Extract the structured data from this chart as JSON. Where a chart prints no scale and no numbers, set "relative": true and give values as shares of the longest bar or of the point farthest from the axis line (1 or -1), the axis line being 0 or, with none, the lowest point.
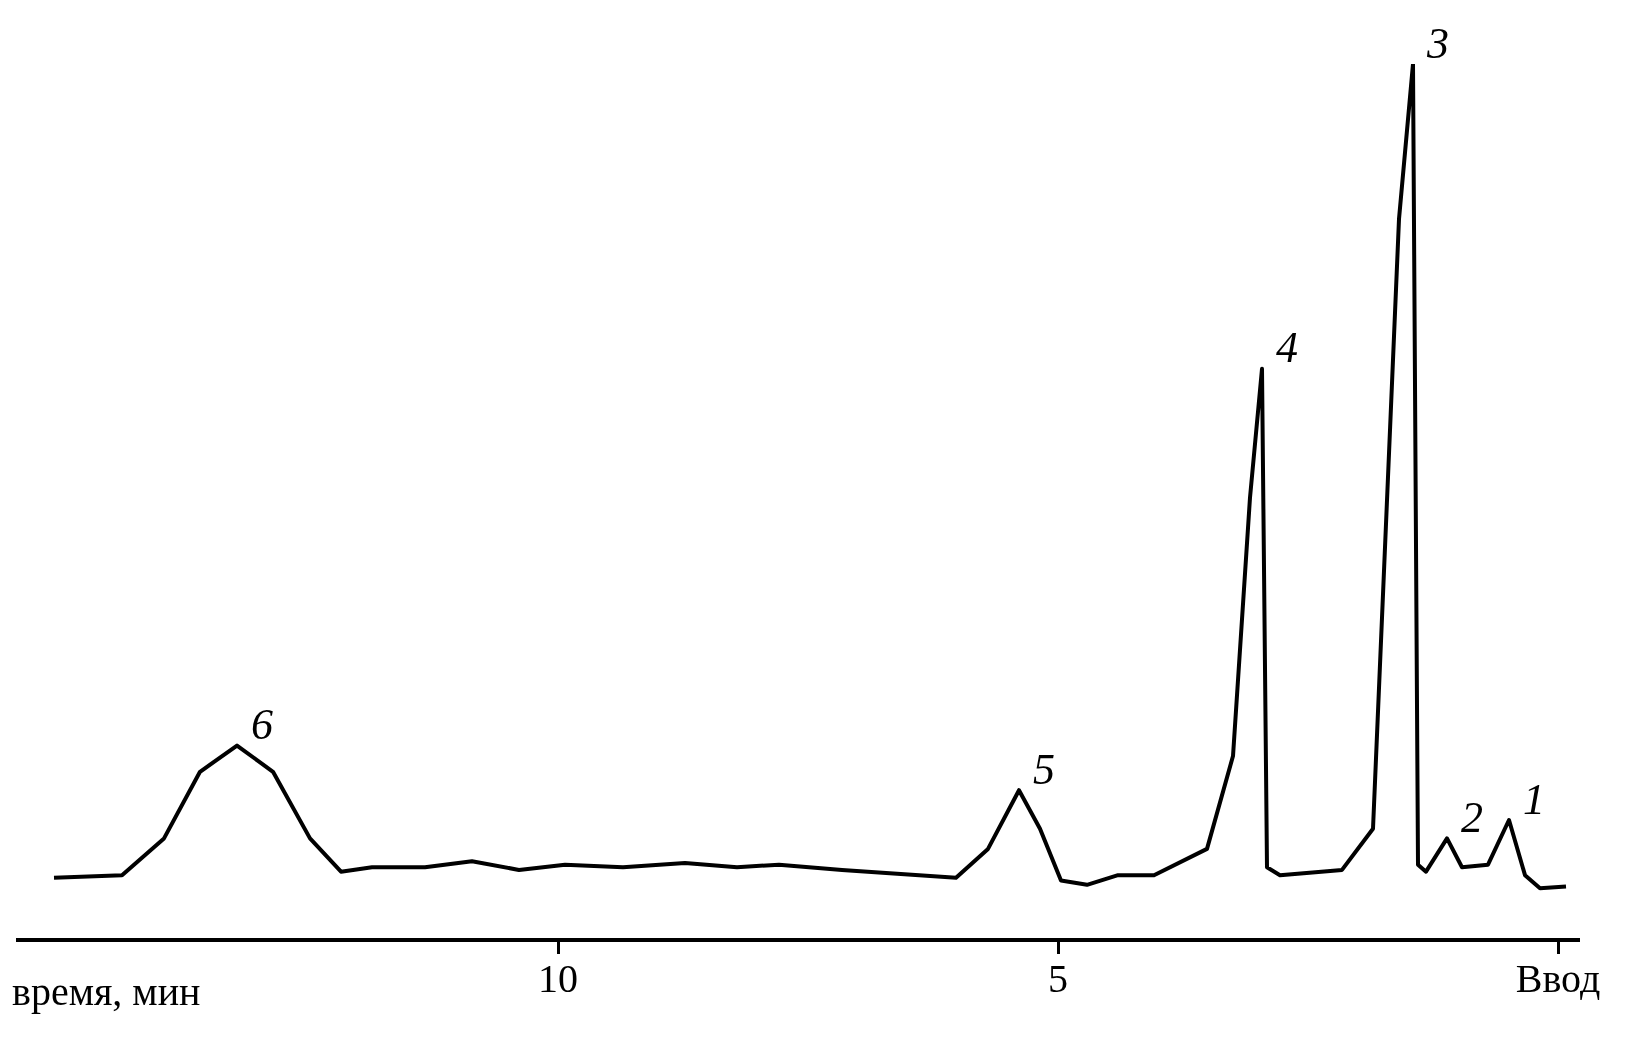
{
  "chart_data": {
    "type": "line",
    "relative": true,
    "xlabel": "время, мин",
    "x": [
      15.04,
      14.36,
      13.94,
      13.58,
      13.21,
      12.85,
      12.48,
      12.17,
      11.86,
      11.33,
      10.86,
      10.39,
      9.93,
      9.35,
      8.73,
      8.21,
      7.79,
      7.16,
      6.02,
      5.7,
      5.39,
      5.18,
      4.97,
      4.71,
      4.4,
      4.04,
      3.51,
      3.25,
      3.08,
      2.96,
      2.91,
      2.78,
      2.16,
      1.85,
      1.59,
      1.45,
      1.4,
      1.32,
      1.11,
      0.96,
      0.7,
      0.49,
      0.33,
      0.18,
      -0.08
    ],
    "series": [
      {
        "color": "#000000",
        "values": [
          0.071,
          0.074,
          0.116,
          0.192,
          0.222,
          0.192,
          0.116,
          0.078,
          0.083,
          0.083,
          0.09,
          0.08,
          0.086,
          0.083,
          0.088,
          0.083,
          0.086,
          0.08,
          0.071,
          0.104,
          0.171,
          0.127,
          0.068,
          0.063,
          0.074,
          0.074,
          0.104,
          0.21,
          0.505,
          0.652,
          0.083,
          0.074,
          0.08,
          0.127,
          0.823,
          1.0,
          0.086,
          0.078,
          0.116,
          0.083,
          0.086,
          0.137,
          0.074,
          0.059,
          0.061
        ]
      }
    ],
    "xlim": [
      15.4,
      -0.2
    ],
    "xticks": [
      10,
      5,
      {
        "value": 0,
        "label": "Ввод"
      }
    ],
    "annotations": [
      {
        "text": "1",
        "x": 0.49,
        "y": 0.137
      },
      {
        "text": "2",
        "x": 1.11,
        "y": 0.116
      },
      {
        "text": "3",
        "x": 1.45,
        "y": 1.0
      },
      {
        "text": "4",
        "x": 2.96,
        "y": 0.652
      },
      {
        "text": "5",
        "x": 5.39,
        "y": 0.171
      },
      {
        "text": "6",
        "x": 13.21,
        "y": 0.222
      }
    ],
    "grid": false,
    "legend": false,
    "marker": "none",
    "line_style": "solid",
    "tick_labels": "x"
  }
}
